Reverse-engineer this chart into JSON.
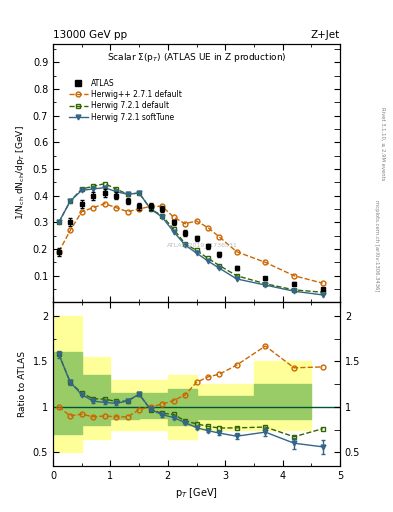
{
  "title_top": "13000 GeV pp",
  "title_right": "Z+Jet",
  "plot_title": "Scalar $\\Sigma$(p$_T$) (ATLAS UE in Z production)",
  "ylabel_main": "1/N$_{ch}$ dN$_{ch}$/dp$_T$ [GeV]",
  "ylabel_ratio": "Ratio to ATLAS",
  "xlabel": "p$_T$ [GeV]",
  "watermark": "ATLAS_2019_I1736531",
  "right_label": "mcplots.cern.ch [arXiv:1306.3436]",
  "right_label2": "Rivet 3.1.10, ≥ 2.9M events",
  "atlas_x": [
    0.1,
    0.3,
    0.5,
    0.7,
    0.9,
    1.1,
    1.3,
    1.5,
    1.7,
    1.9,
    2.1,
    2.3,
    2.5,
    2.7,
    2.9,
    3.2,
    3.7,
    4.2,
    4.7
  ],
  "atlas_y": [
    0.19,
    0.3,
    0.37,
    0.4,
    0.41,
    0.4,
    0.38,
    0.36,
    0.36,
    0.35,
    0.3,
    0.26,
    0.24,
    0.21,
    0.18,
    0.13,
    0.09,
    0.07,
    0.05
  ],
  "atlas_yerr": [
    0.015,
    0.015,
    0.015,
    0.015,
    0.015,
    0.012,
    0.012,
    0.012,
    0.012,
    0.012,
    0.01,
    0.01,
    0.01,
    0.01,
    0.01,
    0.008,
    0.007,
    0.006,
    0.005
  ],
  "hpp_x": [
    0.1,
    0.3,
    0.5,
    0.7,
    0.9,
    1.1,
    1.3,
    1.5,
    1.7,
    1.9,
    2.1,
    2.3,
    2.5,
    2.7,
    2.9,
    3.2,
    3.7,
    4.2,
    4.7
  ],
  "hpp_y": [
    0.19,
    0.27,
    0.34,
    0.355,
    0.37,
    0.355,
    0.34,
    0.35,
    0.36,
    0.36,
    0.32,
    0.295,
    0.305,
    0.28,
    0.245,
    0.19,
    0.15,
    0.1,
    0.072
  ],
  "h721d_x": [
    0.1,
    0.3,
    0.5,
    0.7,
    0.9,
    1.1,
    1.3,
    1.5,
    1.7,
    1.9,
    2.1,
    2.3,
    2.5,
    2.7,
    2.9,
    3.2,
    3.7,
    4.2,
    4.7
  ],
  "h721d_y": [
    0.3,
    0.38,
    0.425,
    0.435,
    0.445,
    0.425,
    0.405,
    0.41,
    0.35,
    0.325,
    0.275,
    0.22,
    0.195,
    0.165,
    0.138,
    0.1,
    0.07,
    0.047,
    0.038
  ],
  "h721s_x": [
    0.1,
    0.3,
    0.5,
    0.7,
    0.9,
    1.1,
    1.3,
    1.5,
    1.7,
    1.9,
    2.1,
    2.3,
    2.5,
    2.7,
    2.9,
    3.2,
    3.7,
    4.2,
    4.7
  ],
  "h721s_y": [
    0.3,
    0.38,
    0.42,
    0.425,
    0.43,
    0.415,
    0.405,
    0.41,
    0.35,
    0.32,
    0.265,
    0.215,
    0.185,
    0.155,
    0.128,
    0.088,
    0.065,
    0.042,
    0.028
  ],
  "ratio_hpp_x": [
    0.1,
    0.3,
    0.5,
    0.7,
    0.9,
    1.1,
    1.3,
    1.5,
    1.7,
    1.9,
    2.1,
    2.3,
    2.5,
    2.7,
    2.9,
    3.2,
    3.7,
    4.2,
    4.7
  ],
  "ratio_hpp_y": [
    1.0,
    0.9,
    0.92,
    0.89,
    0.9,
    0.89,
    0.89,
    0.97,
    1.0,
    1.03,
    1.07,
    1.13,
    1.27,
    1.33,
    1.36,
    1.46,
    1.67,
    1.43,
    1.44
  ],
  "ratio_h721d_x": [
    0.1,
    0.3,
    0.5,
    0.7,
    0.9,
    1.1,
    1.3,
    1.5,
    1.7,
    1.9,
    2.1,
    2.3,
    2.5,
    2.7,
    2.9,
    3.2,
    3.7,
    4.2,
    4.7
  ],
  "ratio_h721d_y": [
    1.58,
    1.27,
    1.15,
    1.09,
    1.085,
    1.06,
    1.065,
    1.14,
    0.97,
    0.93,
    0.917,
    0.846,
    0.813,
    0.786,
    0.767,
    0.769,
    0.778,
    0.671,
    0.76
  ],
  "ratio_h721s_x": [
    0.1,
    0.3,
    0.5,
    0.7,
    0.9,
    1.1,
    1.3,
    1.5,
    1.7,
    1.9,
    2.1,
    2.3,
    2.5,
    2.7,
    2.9,
    3.2,
    3.7,
    4.2,
    4.7
  ],
  "ratio_h721s_y": [
    1.58,
    1.27,
    1.135,
    1.063,
    1.049,
    1.038,
    1.066,
    1.139,
    0.972,
    0.914,
    0.883,
    0.827,
    0.771,
    0.738,
    0.711,
    0.677,
    0.722,
    0.6,
    0.56
  ],
  "ratio_h721s_yerr": [
    0.04,
    0.03,
    0.02,
    0.02,
    0.02,
    0.02,
    0.02,
    0.02,
    0.02,
    0.02,
    0.02,
    0.02,
    0.02,
    0.02,
    0.02,
    0.03,
    0.04,
    0.06,
    0.08
  ],
  "band_edges": [
    0.0,
    0.5,
    1.0,
    1.5,
    2.0,
    2.5,
    3.5,
    4.5
  ],
  "band_ylo": [
    0.5,
    0.65,
    0.75,
    0.75,
    0.65,
    0.75,
    0.75
  ],
  "band_yhi": [
    2.0,
    1.55,
    1.3,
    1.3,
    1.35,
    1.25,
    1.5
  ],
  "band_g_lo": [
    0.7,
    0.8,
    0.87,
    0.88,
    0.8,
    0.87,
    0.87
  ],
  "band_g_hi": [
    1.6,
    1.35,
    1.15,
    1.15,
    1.2,
    1.12,
    1.25
  ],
  "color_atlas": "#000000",
  "color_hpp": "#cc6600",
  "color_h721d": "#336600",
  "color_h721s": "#336688",
  "color_yellow": "#ffff99",
  "color_green": "#99cc66",
  "ylim_main": [
    0.0,
    0.97
  ],
  "ylim_ratio": [
    0.35,
    2.15
  ],
  "xlim": [
    0.0,
    5.0
  ],
  "yticks_main": [
    0.1,
    0.2,
    0.3,
    0.4,
    0.5,
    0.6,
    0.7,
    0.8,
    0.9
  ],
  "yticks_ratio": [
    0.5,
    1.0,
    1.5,
    2.0
  ]
}
